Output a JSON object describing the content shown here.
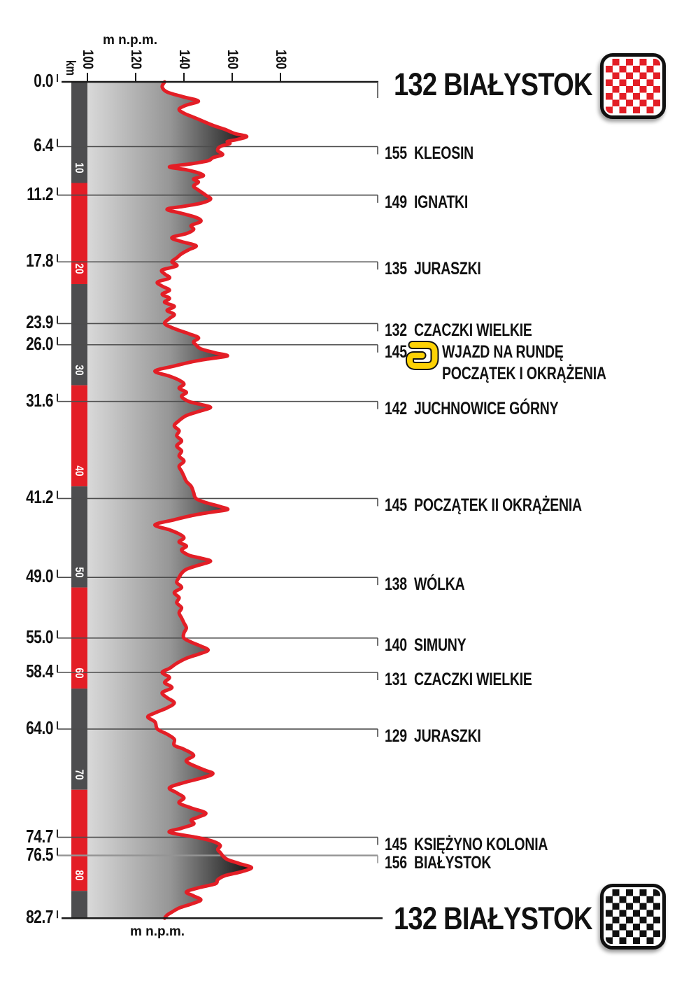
{
  "header": {
    "start_title": "132 BIAŁYSTOK",
    "finish_title": "132 BIAŁYSTOK",
    "start_flag_icon": "checkered-flag-red-white",
    "finish_flag_icon": "checkered-flag-black-white"
  },
  "axis": {
    "elevation_unit_top": "m n.p.m.",
    "elevation_unit_bottom": "m n.p.m.",
    "distance_unit": "km",
    "elevation_ticks": [
      100,
      120,
      140,
      160,
      180
    ],
    "distance_ticks_km": [
      0.0,
      6.4,
      11.2,
      17.8,
      23.9,
      26.0,
      31.6,
      41.2,
      49.0,
      55.0,
      58.4,
      64.0,
      74.7,
      76.5,
      82.7
    ],
    "km_bar_interval_labels": [
      10,
      20,
      30,
      40,
      50,
      60,
      70,
      80
    ]
  },
  "colors": {
    "profile_red": "#e31e26",
    "bar_dark": "#4d4d4f",
    "bar_red": "#e31e26",
    "fill_light": "#d9d9d9",
    "fill_mid": "#969696",
    "fill_dark": "#0f0f0f",
    "marker_line": "#4d4d4d",
    "marker_line_gray": "#949494",
    "axis_black": "#1a1a1a",
    "icon_yellow": "#fdd205",
    "flag_red": "#e31e26",
    "flag_black": "#111111"
  },
  "chart_data": {
    "type": "area",
    "title": "132 BIAŁYSTOK — stage elevation profile, 82.7 km",
    "orientation": "vertical: distance increases downward, elevation increases rightward",
    "xlabel": "m n.p.m.",
    "ylabel": "km",
    "xlim": [
      100,
      190
    ],
    "ylim_km": [
      0,
      82.7
    ],
    "grid": "horizontal marker lines at each waypoint",
    "legend_position": "none",
    "markers": [
      {
        "km": 0.0,
        "elevation": 132,
        "label": "BIAŁYSTOK",
        "role": "start"
      },
      {
        "km": 6.4,
        "elevation": 155,
        "label": "KLEOSIN"
      },
      {
        "km": 11.2,
        "elevation": 149,
        "label": "IGNATKI"
      },
      {
        "km": 17.8,
        "elevation": 135,
        "label": "JURASZKI"
      },
      {
        "km": 23.9,
        "elevation": 132,
        "label": "CZACZKI WIELKIE"
      },
      {
        "km": 26.0,
        "elevation": 145,
        "label": "WJAZD NA RUNDĘ",
        "label2": "POCZĄTEK I OKRĄŻENIA",
        "icon": "lap-loop-icon"
      },
      {
        "km": 31.6,
        "elevation": 142,
        "label": "JUCHNOWICE GÓRNY"
      },
      {
        "km": 41.2,
        "elevation": 145,
        "label": "POCZĄTEK II OKRĄŻENIA"
      },
      {
        "km": 49.0,
        "elevation": 138,
        "label": "WÓLKA"
      },
      {
        "km": 55.0,
        "elevation": 140,
        "label": "SIMUNY"
      },
      {
        "km": 58.4,
        "elevation": 131,
        "label": "CZACZKI WIELKIE"
      },
      {
        "km": 64.0,
        "elevation": 129,
        "label": "JURASZKI"
      },
      {
        "km": 74.7,
        "elevation": 145,
        "label": "KSIĘŻYNO KOLONIA"
      },
      {
        "km": 76.5,
        "elevation": 156,
        "label": "BIAŁYSTOK",
        "line": "gray"
      },
      {
        "km": 82.7,
        "elevation": 132,
        "label": "BIAŁYSTOK",
        "role": "finish"
      }
    ],
    "profile": [
      [
        0,
        132
      ],
      [
        0.5,
        131
      ],
      [
        1.0,
        133
      ],
      [
        1.5,
        140
      ],
      [
        1.9,
        146
      ],
      [
        2.3,
        141
      ],
      [
        2.7,
        138
      ],
      [
        3.1,
        140
      ],
      [
        3.5,
        144
      ],
      [
        3.9,
        148
      ],
      [
        4.3,
        152
      ],
      [
        4.7,
        157
      ],
      [
        5.1,
        161
      ],
      [
        5.4,
        166
      ],
      [
        5.7,
        162
      ],
      [
        5.9,
        158
      ],
      [
        6.1,
        159
      ],
      [
        6.4,
        155
      ],
      [
        6.8,
        154
      ],
      [
        7.2,
        156
      ],
      [
        7.5,
        152
      ],
      [
        7.8,
        150
      ],
      [
        8.1,
        143
      ],
      [
        8.4,
        134
      ],
      [
        8.7,
        141
      ],
      [
        9.0,
        146
      ],
      [
        9.3,
        148
      ],
      [
        9.6,
        144
      ],
      [
        9.9,
        146
      ],
      [
        10.3,
        144
      ],
      [
        10.7,
        146
      ],
      [
        11.2,
        149
      ],
      [
        11.6,
        151
      ],
      [
        12.0,
        147
      ],
      [
        12.3,
        140
      ],
      [
        12.6,
        133
      ],
      [
        13.0,
        139
      ],
      [
        13.4,
        145
      ],
      [
        13.8,
        147
      ],
      [
        14.2,
        143
      ],
      [
        14.6,
        144
      ],
      [
        15.0,
        141
      ],
      [
        15.4,
        135
      ],
      [
        15.8,
        139
      ],
      [
        16.2,
        145
      ],
      [
        16.6,
        142
      ],
      [
        17.0,
        139
      ],
      [
        17.4,
        137
      ],
      [
        17.8,
        135
      ],
      [
        18.2,
        137
      ],
      [
        18.6,
        131
      ],
      [
        19.0,
        132
      ],
      [
        19.4,
        134
      ],
      [
        19.8,
        129
      ],
      [
        20.2,
        131
      ],
      [
        20.6,
        134
      ],
      [
        21.0,
        131
      ],
      [
        21.4,
        134
      ],
      [
        21.8,
        132
      ],
      [
        22.2,
        136
      ],
      [
        22.6,
        133
      ],
      [
        23.0,
        136
      ],
      [
        23.4,
        134
      ],
      [
        23.9,
        132
      ],
      [
        24.4,
        136
      ],
      [
        24.9,
        142
      ],
      [
        25.3,
        146
      ],
      [
        25.7,
        144
      ],
      [
        26.0,
        145
      ],
      [
        26.4,
        147
      ],
      [
        26.8,
        153
      ],
      [
        27.1,
        158
      ],
      [
        27.4,
        150
      ],
      [
        27.7,
        143
      ],
      [
        28.1,
        136
      ],
      [
        28.6,
        128
      ],
      [
        29.1,
        134
      ],
      [
        29.5,
        138
      ],
      [
        29.9,
        140
      ],
      [
        30.3,
        138
      ],
      [
        30.7,
        141
      ],
      [
        31.1,
        139
      ],
      [
        31.6,
        142
      ],
      [
        31.9,
        147
      ],
      [
        32.2,
        151
      ],
      [
        32.6,
        146
      ],
      [
        33.0,
        141
      ],
      [
        33.5,
        138
      ],
      [
        34.0,
        136
      ],
      [
        34.5,
        138
      ],
      [
        35.0,
        137
      ],
      [
        35.5,
        139
      ],
      [
        36.0,
        137
      ],
      [
        36.5,
        139
      ],
      [
        37.0,
        138
      ],
      [
        37.5,
        140
      ],
      [
        38.0,
        138
      ],
      [
        38.5,
        139
      ],
      [
        39.0,
        140
      ],
      [
        39.5,
        141
      ],
      [
        40.0,
        143
      ],
      [
        40.6,
        144
      ],
      [
        41.2,
        145
      ],
      [
        41.6,
        149
      ],
      [
        42.0,
        155
      ],
      [
        42.3,
        158
      ],
      [
        42.6,
        150
      ],
      [
        42.9,
        143
      ],
      [
        43.3,
        136
      ],
      [
        43.8,
        128
      ],
      [
        44.3,
        134
      ],
      [
        44.7,
        138
      ],
      [
        45.1,
        140
      ],
      [
        45.5,
        138
      ],
      [
        45.9,
        141
      ],
      [
        46.3,
        139
      ],
      [
        46.8,
        142
      ],
      [
        47.1,
        147
      ],
      [
        47.4,
        151
      ],
      [
        47.8,
        146
      ],
      [
        48.2,
        141
      ],
      [
        48.6,
        139
      ],
      [
        49.0,
        138
      ],
      [
        49.5,
        137
      ],
      [
        50.0,
        139
      ],
      [
        50.5,
        136
      ],
      [
        51.0,
        138
      ],
      [
        51.5,
        137
      ],
      [
        52.0,
        139
      ],
      [
        52.5,
        138
      ],
      [
        53.0,
        139
      ],
      [
        53.5,
        140
      ],
      [
        54.0,
        141
      ],
      [
        54.5,
        140
      ],
      [
        55.0,
        140
      ],
      [
        55.4,
        143
      ],
      [
        55.8,
        147
      ],
      [
        56.2,
        150
      ],
      [
        56.6,
        146
      ],
      [
        57.0,
        141
      ],
      [
        57.5,
        137
      ],
      [
        58.0,
        134
      ],
      [
        58.4,
        131
      ],
      [
        58.9,
        134
      ],
      [
        59.4,
        132
      ],
      [
        59.9,
        135
      ],
      [
        60.4,
        131
      ],
      [
        60.9,
        133
      ],
      [
        61.4,
        136
      ],
      [
        61.9,
        133
      ],
      [
        62.4,
        128
      ],
      [
        62.8,
        125
      ],
      [
        63.3,
        128
      ],
      [
        64.0,
        129
      ],
      [
        64.5,
        133
      ],
      [
        65.0,
        136
      ],
      [
        65.6,
        136
      ],
      [
        66.0,
        140
      ],
      [
        66.6,
        144
      ],
      [
        67.2,
        141
      ],
      [
        68.0,
        148
      ],
      [
        68.4,
        152
      ],
      [
        68.8,
        148
      ],
      [
        69.3,
        140
      ],
      [
        69.8,
        134
      ],
      [
        70.3,
        137
      ],
      [
        70.8,
        140
      ],
      [
        71.3,
        138
      ],
      [
        71.8,
        143
      ],
      [
        72.3,
        149
      ],
      [
        72.7,
        146
      ],
      [
        73.0,
        143
      ],
      [
        73.4,
        144
      ],
      [
        73.8,
        139
      ],
      [
        74.2,
        134
      ],
      [
        74.7,
        145
      ],
      [
        75.1,
        152
      ],
      [
        75.5,
        155
      ],
      [
        75.9,
        154
      ],
      [
        76.2,
        155
      ],
      [
        76.5,
        156
      ],
      [
        76.9,
        158
      ],
      [
        77.3,
        163
      ],
      [
        77.7,
        168
      ],
      [
        78.1,
        164
      ],
      [
        78.5,
        157
      ],
      [
        78.9,
        154
      ],
      [
        79.3,
        153
      ],
      [
        79.7,
        146
      ],
      [
        80.1,
        141
      ],
      [
        80.5,
        144
      ],
      [
        80.9,
        147
      ],
      [
        81.3,
        143
      ],
      [
        81.7,
        138
      ],
      [
        82.1,
        135
      ],
      [
        82.4,
        133
      ],
      [
        82.7,
        132
      ]
    ]
  }
}
